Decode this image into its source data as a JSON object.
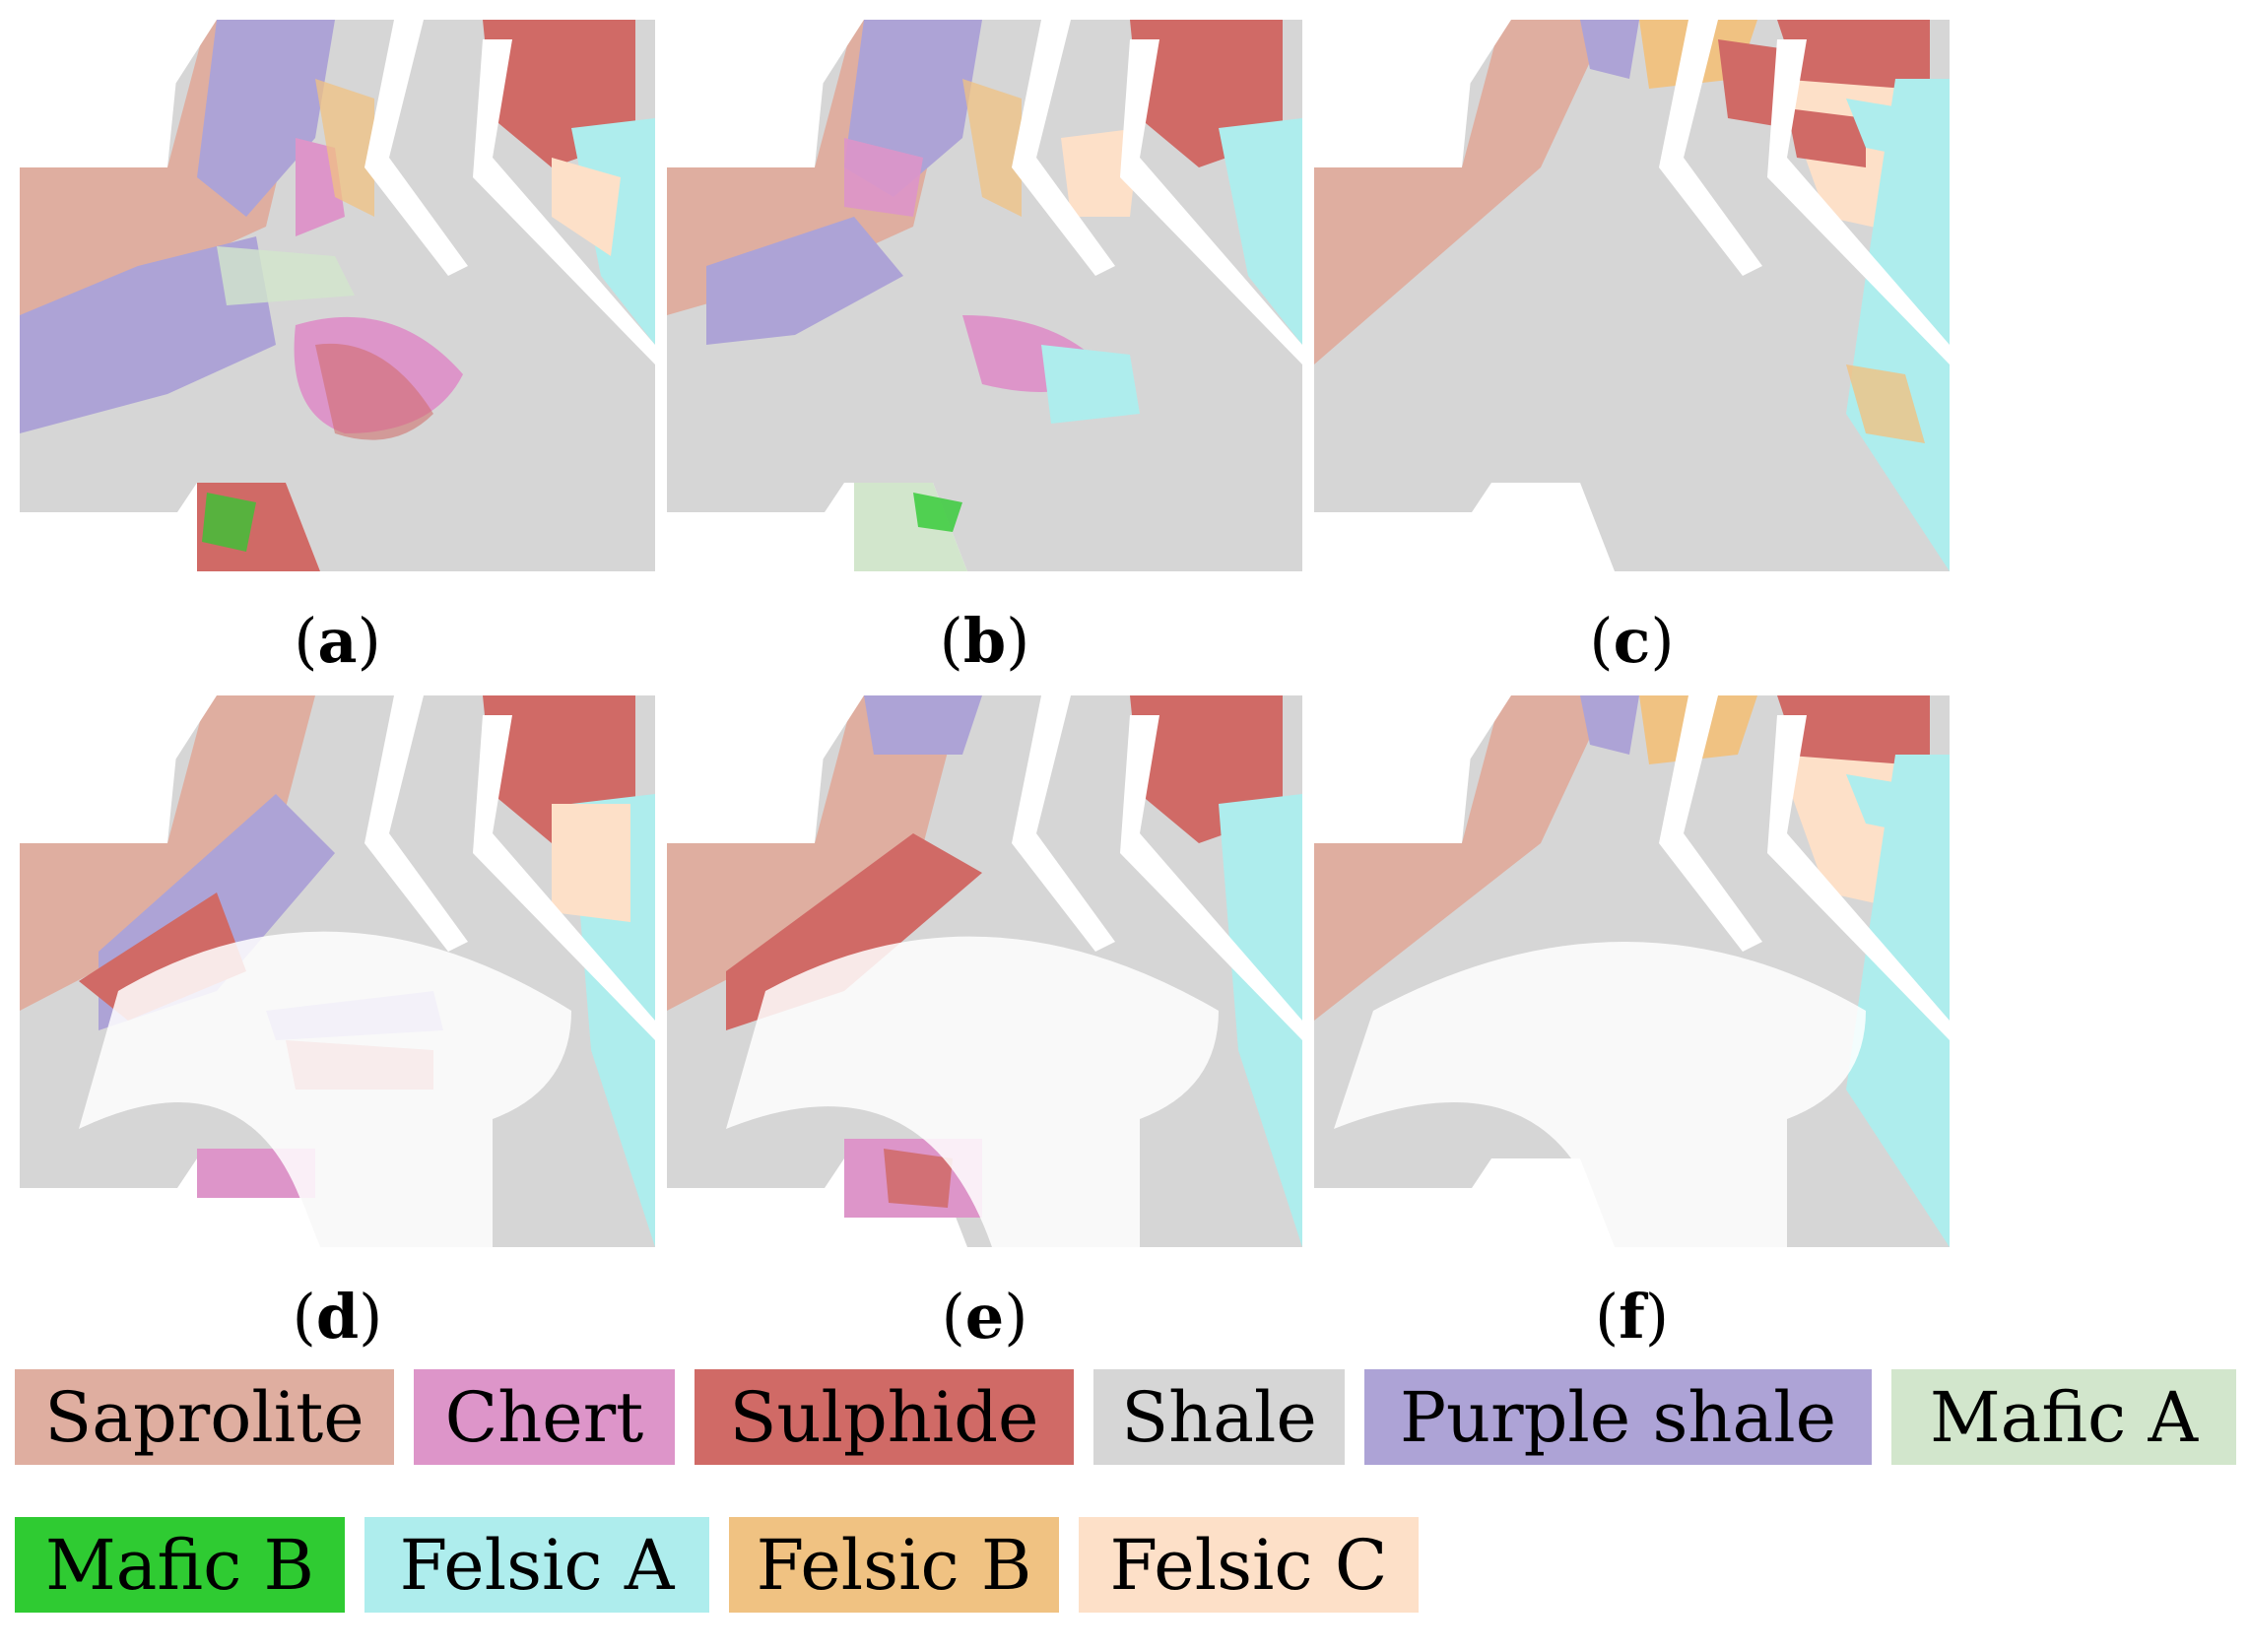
{
  "panels": [
    {
      "id": "a",
      "caption": "a"
    },
    {
      "id": "b",
      "caption": "b"
    },
    {
      "id": "c",
      "caption": "c"
    },
    {
      "id": "d",
      "caption": "d"
    },
    {
      "id": "e",
      "caption": "e"
    },
    {
      "id": "f",
      "caption": "f"
    }
  ],
  "legend": [
    {
      "label": "Saprolite",
      "color": "#dfaea0"
    },
    {
      "label": "Chert",
      "color": "#dd95c9"
    },
    {
      "label": "Sulphide",
      "color": "#d06a66"
    },
    {
      "label": "Shale",
      "color": "#d6d6d6"
    },
    {
      "label": "Purple shale",
      "color": "#ada3d6"
    },
    {
      "label": "Mafic A",
      "color": "#d2e6cc"
    },
    {
      "label": "Mafic B",
      "color": "#2fcb32"
    },
    {
      "label": "Felsic A",
      "color": "#aeeded"
    },
    {
      "label": "Felsic B",
      "color": "#f0c282"
    },
    {
      "label": "Felsic C",
      "color": "#fde0c8"
    }
  ]
}
